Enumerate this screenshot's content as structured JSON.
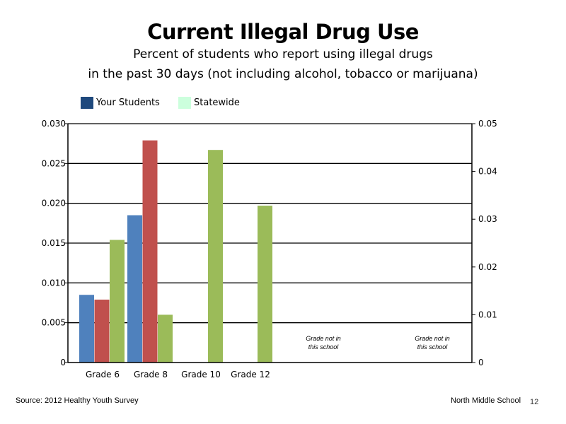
{
  "title": "Current Illegal Drug Use",
  "subtitle_line1": "Percent of students who report using illegal drugs",
  "subtitle_line2": "in the past 30 days (not including alcohol, tobacco or marijuana)",
  "legend": [
    {
      "label": "Your Students",
      "color": "#1f497d"
    },
    {
      "label": "Statewide",
      "color": "#ccffdd"
    }
  ],
  "footer": {
    "source": "Source: 2012 Healthy Youth Survey",
    "school": "North Middle School",
    "page_number": "12"
  },
  "chart_data": {
    "type": "bar",
    "categories": [
      "Grade 6",
      "Grade 8",
      "Grade 10",
      "Grade 12",
      "",
      ""
    ],
    "series": [
      {
        "values": [
          0.0085,
          0.0185,
          null,
          null,
          null,
          null
        ],
        "color": "#4f81bd"
      },
      {
        "values": [
          0.0079,
          0.0279,
          null,
          null,
          null,
          null
        ],
        "color": "#c0504d"
      },
      {
        "values": [
          0.0154,
          0.006,
          0.0267,
          0.0197,
          null,
          null
        ],
        "color": "#9bbb59"
      }
    ],
    "left_axis": {
      "ylim": [
        0,
        0.03
      ],
      "ticks": [
        "0",
        "0.005",
        "0.010",
        "0.015",
        "0.020",
        "0.025",
        "0.030"
      ]
    },
    "right_axis": {
      "ylim": [
        0,
        0.05
      ],
      "ticks": [
        "0",
        "0.01",
        "0.02",
        "0.03",
        "0.04",
        "0.05"
      ]
    },
    "annotations": [
      {
        "category_index": 4,
        "lines": [
          "Grade not in",
          "this school"
        ]
      },
      {
        "category_index": 5,
        "lines": [
          "Grade not in",
          "this school"
        ]
      }
    ],
    "grid": true,
    "legend_position": "top-left"
  }
}
